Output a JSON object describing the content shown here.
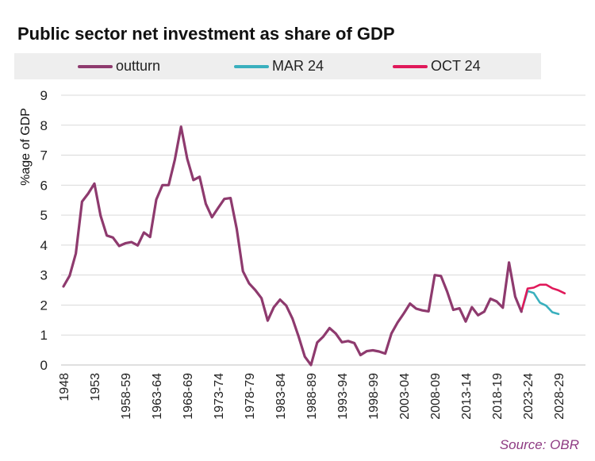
{
  "title": "Public sector net investment as share of GDP",
  "source": "Source: OBR",
  "chart_data": {
    "type": "line",
    "title": "Public sector net investment as share of GDP",
    "xlabel": "",
    "ylabel": "%age of GDP",
    "ylim": [
      0,
      9
    ],
    "yticks": [
      0,
      1,
      2,
      3,
      4,
      5,
      6,
      7,
      8,
      9
    ],
    "grid": true,
    "legend_position": "top",
    "x_tick_labels": [
      "1948",
      "1953",
      "1958-59",
      "1963-64",
      "1968-69",
      "1973-74",
      "1978-79",
      "1983-84",
      "1988-89",
      "1993-94",
      "1998-99",
      "2003-04",
      "2008-09",
      "2013-14",
      "2018-19",
      "2023-24",
      "2028-29"
    ],
    "x_tick_index_start": 0,
    "x_tick_step": 5,
    "n_periods": 82,
    "series": [
      {
        "name": "outturn",
        "color": "#8e3a6e",
        "start_index": 0,
        "values": [
          2.62,
          2.98,
          3.72,
          5.45,
          5.72,
          6.05,
          4.98,
          4.32,
          4.25,
          3.97,
          4.06,
          4.1,
          3.99,
          4.42,
          4.27,
          5.52,
          6.0,
          6.0,
          6.85,
          7.95,
          6.88,
          6.17,
          6.28,
          5.38,
          4.93,
          5.24,
          5.54,
          5.57,
          4.54,
          3.13,
          2.72,
          2.5,
          2.23,
          1.48,
          1.93,
          2.18,
          1.98,
          1.55,
          0.95,
          0.28,
          0.0,
          0.75,
          0.95,
          1.23,
          1.05,
          0.76,
          0.8,
          0.73,
          0.33,
          0.46,
          0.49,
          0.45,
          0.38,
          1.05,
          1.42,
          1.72,
          2.05,
          1.88,
          1.82,
          1.79,
          3.0,
          2.97,
          2.45,
          1.84,
          1.89,
          1.45,
          1.93,
          1.66,
          1.78,
          2.21,
          2.12,
          1.91,
          3.42,
          2.28,
          1.78
        ]
      },
      {
        "name": "MAR 24",
        "color": "#3ab0be",
        "start_index": 74,
        "values": [
          1.78,
          2.47,
          2.4,
          2.08,
          1.98,
          1.76,
          1.7
        ]
      },
      {
        "name": "OCT 24",
        "color": "#e0195a",
        "start_index": 74,
        "values": [
          1.78,
          2.55,
          2.58,
          2.68,
          2.68,
          2.56,
          2.49,
          2.39
        ]
      }
    ]
  }
}
